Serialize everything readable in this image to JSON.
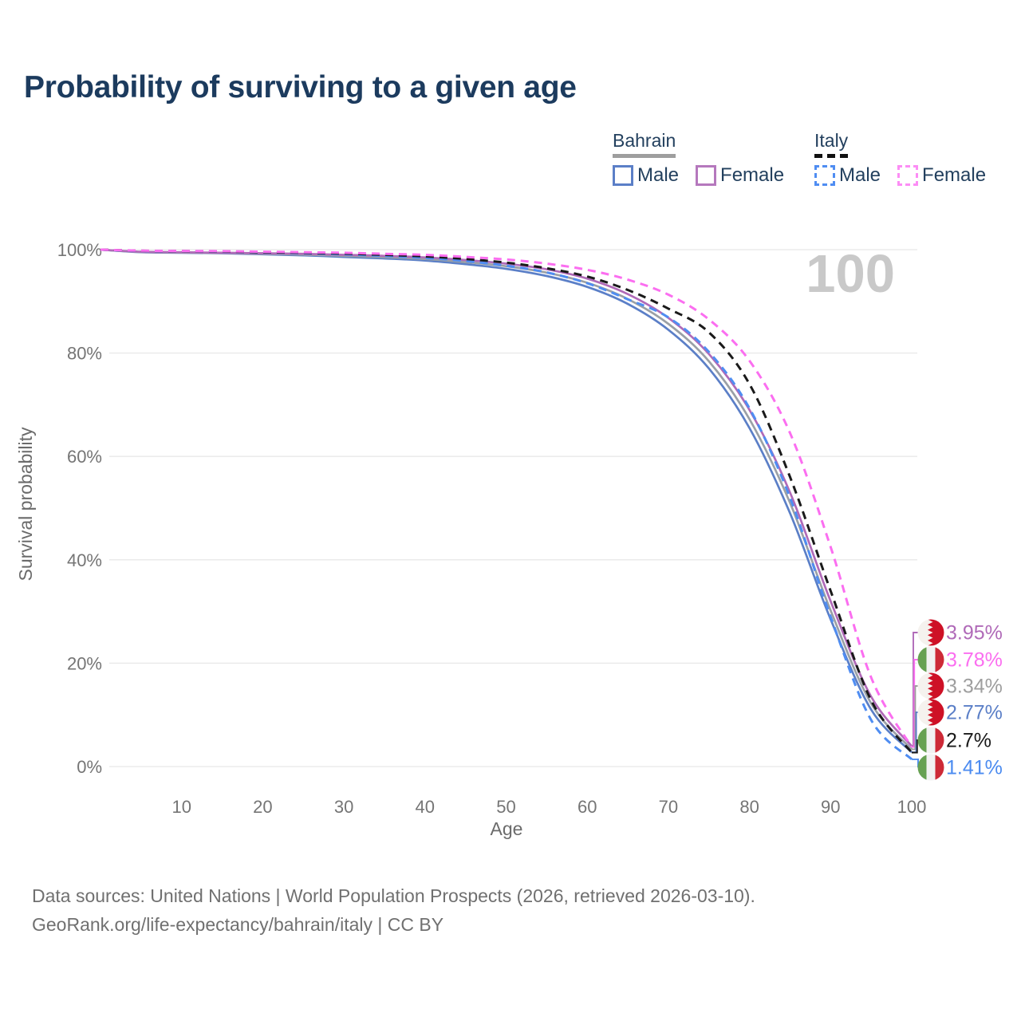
{
  "header": {
    "title": "Probability of surviving to a given age"
  },
  "legend": {
    "bahrain": {
      "label": "Bahrain",
      "male": "Male",
      "female": "Female"
    },
    "italy": {
      "label": "Italy",
      "male": "Male",
      "female": "Female"
    }
  },
  "chart_data": {
    "type": "line",
    "title": "Probability of surviving to a given age",
    "xlabel": "Age",
    "ylabel": "Survival probability",
    "xlim": [
      0,
      100
    ],
    "ylim": [
      0,
      100
    ],
    "grid": "horizontal",
    "legend_position": "top-right",
    "watermark": "100",
    "x_ticks": [
      10,
      20,
      30,
      40,
      50,
      60,
      70,
      80,
      90,
      100
    ],
    "y_ticks": [
      {
        "value": 0,
        "label": "0%"
      },
      {
        "value": 20,
        "label": "20%"
      },
      {
        "value": 40,
        "label": "40%"
      },
      {
        "value": 60,
        "label": "60%"
      },
      {
        "value": 80,
        "label": "80%"
      },
      {
        "value": 100,
        "label": "100%"
      }
    ],
    "x": [
      0,
      5,
      10,
      15,
      20,
      25,
      30,
      35,
      40,
      45,
      50,
      55,
      60,
      65,
      70,
      75,
      80,
      85,
      90,
      95,
      100
    ],
    "series": [
      {
        "name": "Bahrain Male",
        "country": "Bahrain",
        "sex": "Male",
        "line_style": "solid",
        "color": "#5b7fc7",
        "values": [
          100,
          99.5,
          99.4,
          99.3,
          99.1,
          98.9,
          98.6,
          98.3,
          97.9,
          97.2,
          96.3,
          94.9,
          92.8,
          89.5,
          84.5,
          77.0,
          65.5,
          49.0,
          28.5,
          11.0,
          2.77
        ]
      },
      {
        "name": "Bahrain",
        "country": "Bahrain",
        "sex": "Both",
        "line_style": "solid",
        "color": "#9aa0a6",
        "values": [
          100,
          99.55,
          99.45,
          99.35,
          99.2,
          99.05,
          98.8,
          98.55,
          98.2,
          97.6,
          96.8,
          95.55,
          93.6,
          90.45,
          85.65,
          78.4,
          67.2,
          51.0,
          30.2,
          12.2,
          3.34
        ]
      },
      {
        "name": "Bahrain Female",
        "country": "Bahrain",
        "sex": "Female",
        "line_style": "solid",
        "color": "#b06ab8",
        "values": [
          100,
          99.6,
          99.5,
          99.4,
          99.3,
          99.2,
          99.0,
          98.8,
          98.5,
          98.0,
          97.3,
          96.2,
          94.4,
          91.4,
          86.8,
          79.8,
          69.0,
          53.0,
          32.0,
          13.5,
          3.95
        ]
      },
      {
        "name": "Italy Male",
        "country": "Italy",
        "sex": "Male",
        "line_style": "dashed",
        "color": "#4f8df2",
        "values": [
          100,
          99.75,
          99.7,
          99.6,
          99.45,
          99.3,
          99.1,
          98.8,
          98.4,
          97.8,
          96.9,
          95.6,
          93.5,
          90.4,
          86.9,
          80.2,
          69.3,
          52.0,
          29.0,
          9.0,
          1.41
        ]
      },
      {
        "name": "Italy",
        "country": "Italy",
        "sex": "Both",
        "line_style": "dashed",
        "color": "#1a1a1a",
        "values": [
          100,
          99.78,
          99.72,
          99.65,
          99.5,
          99.4,
          99.25,
          99.0,
          98.7,
          98.2,
          97.5,
          96.4,
          94.8,
          92.2,
          88.6,
          84.0,
          74.0,
          56.0,
          34.0,
          12.8,
          2.7
        ]
      },
      {
        "name": "Italy Female",
        "country": "Italy",
        "sex": "Female",
        "line_style": "dashed",
        "color": "#fb6ef0",
        "values": [
          100,
          99.8,
          99.75,
          99.7,
          99.6,
          99.5,
          99.4,
          99.2,
          99.0,
          98.6,
          98.1,
          97.3,
          96.1,
          94.2,
          91.3,
          86.5,
          78.5,
          64.5,
          42.5,
          17.2,
          3.78
        ]
      }
    ],
    "end_labels": [
      {
        "series": "Bahrain Female",
        "label": "3.95%",
        "color": "#b06ab8",
        "flag": "bahrain"
      },
      {
        "series": "Italy Female",
        "label": "3.78%",
        "color": "#fb6ef0",
        "flag": "italy"
      },
      {
        "series": "Bahrain",
        "label": "3.34%",
        "color": "#9e9e9e",
        "flag": "bahrain"
      },
      {
        "series": "Bahrain Male",
        "label": "2.77%",
        "color": "#5b7fc7",
        "flag": "bahrain"
      },
      {
        "series": "Italy",
        "label": "2.7%",
        "color": "#1a1a1a",
        "flag": "italy"
      },
      {
        "series": "Italy Male",
        "label": "1.41%",
        "color": "#4b8bf0",
        "flag": "italy"
      }
    ],
    "flag_colors": {
      "bahrain_red": "#ce1126",
      "bahrain_white": "#f5f2ee",
      "italy_green": "#67a152",
      "italy_white": "#f2f2f2",
      "italy_red": "#cd2a37"
    }
  },
  "footer": {
    "line1": "Data sources: United Nations | World Population Prospects (2026, retrieved 2026-03-10).",
    "line2": "GeoRank.org/life-expectancy/bahrain/italy | CC BY"
  }
}
